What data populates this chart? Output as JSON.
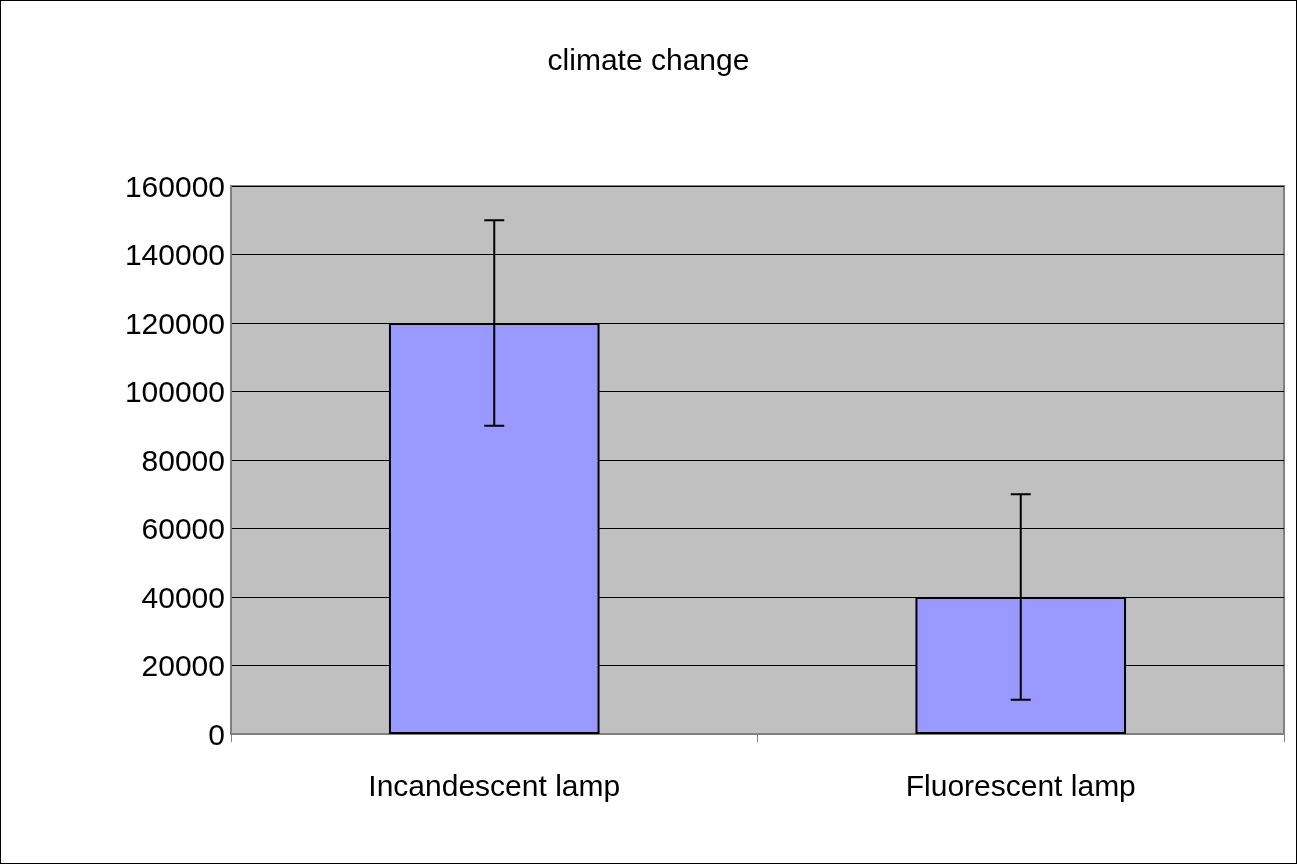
{
  "chart_data": {
    "type": "bar",
    "title": "climate change",
    "categories": [
      "Incandescent lamp",
      "Fluorescent lamp"
    ],
    "values": [
      120000,
      40000
    ],
    "errors": [
      30000,
      30000
    ],
    "color": "#9999ff",
    "ylim": [
      0,
      160000
    ],
    "yticks": [
      0,
      20000,
      40000,
      60000,
      80000,
      100000,
      120000,
      140000,
      160000
    ],
    "grid": "y"
  }
}
